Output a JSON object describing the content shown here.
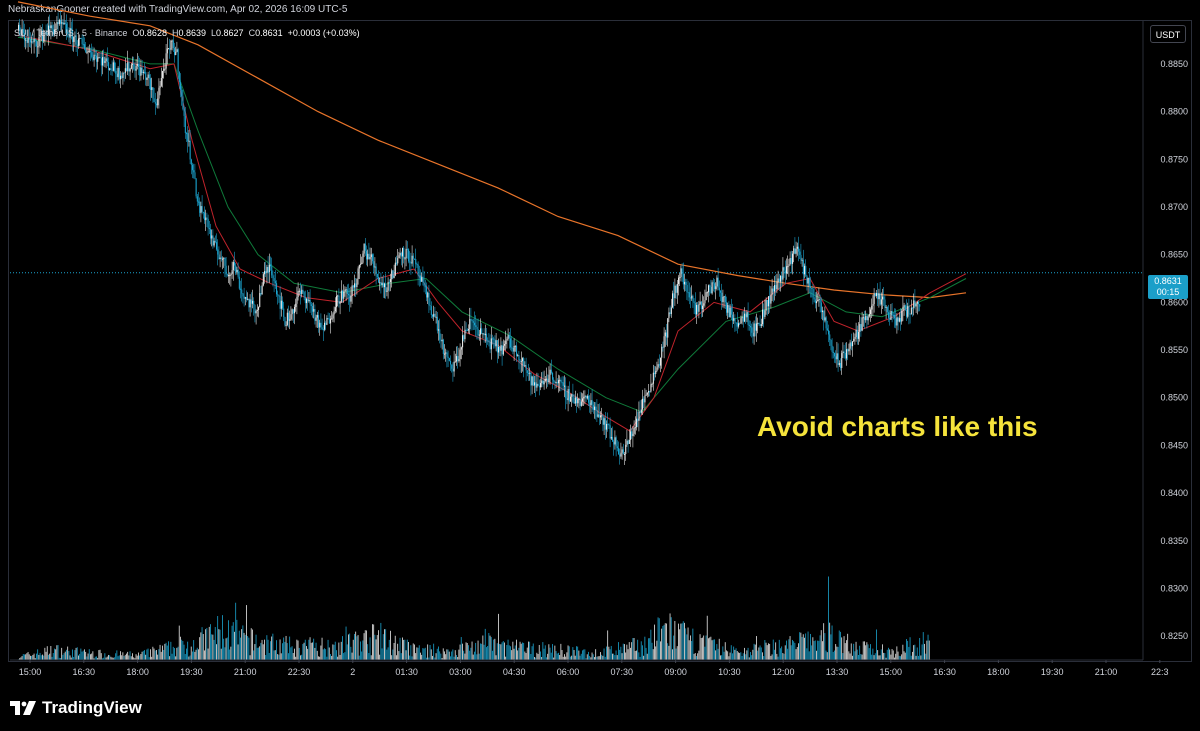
{
  "header": {
    "credit": "NebraskanGooner created with TradingView.com, Apr 02, 2026 16:09 UTC-5"
  },
  "legend": {
    "symbol": "SUI / TetherUS · 5 · Binance",
    "o_label": "O",
    "o_value": "0.8628",
    "h_label": "H",
    "h_value": "0.8639",
    "l_label": "L",
    "l_value": "0.8627",
    "c_label": "C",
    "c_value": "0.8631",
    "change": "+0.0003 (+0.03%)"
  },
  "currency": "USDT",
  "annotation": "Avoid charts like this",
  "price_tag": {
    "price": "0.8631",
    "countdown": "00:15"
  },
  "footer": {
    "brand": "TradingView"
  },
  "colors": {
    "up": "#e8e8e8",
    "down": "#1ba2cd",
    "ema_red": "#c0232b",
    "ema_green": "#0f7a3a",
    "ma_orange": "#e8742a",
    "annotation": "#f5e33b"
  },
  "chart_data": {
    "type": "candlestick",
    "x_ticks": [
      "15:00",
      "16:30",
      "18:00",
      "19:30",
      "21:00",
      "22:30",
      "2",
      "01:30",
      "03:00",
      "04:30",
      "06:00",
      "07:30",
      "09:00",
      "10:30",
      "12:00",
      "13:30",
      "15:00",
      "16:30",
      "18:00",
      "19:30",
      "21:00",
      "22:3"
    ],
    "y_ticks": [
      "0.8850",
      "0.8800",
      "0.8750",
      "0.8700",
      "0.8650",
      "0.8600",
      "0.8550",
      "0.8500",
      "0.8450",
      "0.8400",
      "0.8350",
      "0.8300",
      "0.8250"
    ],
    "ylim": [
      0.8225,
      0.8895
    ],
    "last_price": 0.8631,
    "price_path": [
      [
        0,
        0.8885
      ],
      [
        12,
        0.887
      ],
      [
        24,
        0.8885
      ],
      [
        36,
        0.889
      ],
      [
        48,
        0.8875
      ],
      [
        60,
        0.8862
      ],
      [
        72,
        0.8852
      ],
      [
        84,
        0.884
      ],
      [
        96,
        0.885
      ],
      [
        108,
        0.8835
      ],
      [
        114,
        0.8805
      ],
      [
        118,
        0.883
      ],
      [
        124,
        0.886
      ],
      [
        128,
        0.887
      ],
      [
        132,
        0.886
      ],
      [
        138,
        0.879
      ],
      [
        144,
        0.875
      ],
      [
        150,
        0.87
      ],
      [
        156,
        0.869
      ],
      [
        162,
        0.866
      ],
      [
        168,
        0.865
      ],
      [
        174,
        0.863
      ],
      [
        180,
        0.864
      ],
      [
        186,
        0.861
      ],
      [
        192,
        0.86
      ],
      [
        198,
        0.859
      ],
      [
        204,
        0.8625
      ],
      [
        210,
        0.864
      ],
      [
        216,
        0.861
      ],
      [
        222,
        0.858
      ],
      [
        228,
        0.859
      ],
      [
        234,
        0.861
      ],
      [
        240,
        0.8605
      ],
      [
        246,
        0.859
      ],
      [
        252,
        0.857
      ],
      [
        258,
        0.858
      ],
      [
        264,
        0.86
      ],
      [
        270,
        0.861
      ],
      [
        276,
        0.8605
      ],
      [
        282,
        0.8625
      ],
      [
        288,
        0.8655
      ],
      [
        294,
        0.8645
      ],
      [
        300,
        0.8625
      ],
      [
        306,
        0.8615
      ],
      [
        312,
        0.863
      ],
      [
        318,
        0.8655
      ],
      [
        324,
        0.865
      ],
      [
        330,
        0.864
      ],
      [
        336,
        0.862
      ],
      [
        342,
        0.86
      ],
      [
        348,
        0.858
      ],
      [
        354,
        0.855
      ],
      [
        360,
        0.853
      ],
      [
        366,
        0.854
      ],
      [
        372,
        0.857
      ],
      [
        378,
        0.858
      ],
      [
        384,
        0.857
      ],
      [
        390,
        0.856
      ],
      [
        396,
        0.8555
      ],
      [
        402,
        0.855
      ],
      [
        408,
        0.856
      ],
      [
        414,
        0.855
      ],
      [
        420,
        0.854
      ],
      [
        426,
        0.852
      ],
      [
        432,
        0.851
      ],
      [
        438,
        0.852
      ],
      [
        444,
        0.8525
      ],
      [
        450,
        0.8515
      ],
      [
        456,
        0.8505
      ],
      [
        462,
        0.85
      ],
      [
        468,
        0.8495
      ],
      [
        474,
        0.85
      ],
      [
        480,
        0.849
      ],
      [
        486,
        0.848
      ],
      [
        492,
        0.8465
      ],
      [
        498,
        0.845
      ],
      [
        504,
        0.844
      ],
      [
        510,
        0.846
      ],
      [
        516,
        0.848
      ],
      [
        522,
        0.85
      ],
      [
        528,
        0.852
      ],
      [
        534,
        0.854
      ],
      [
        540,
        0.857
      ],
      [
        546,
        0.861
      ],
      [
        552,
        0.863
      ],
      [
        558,
        0.861
      ],
      [
        564,
        0.859
      ],
      [
        570,
        0.86
      ],
      [
        576,
        0.8615
      ],
      [
        582,
        0.862
      ],
      [
        588,
        0.86
      ],
      [
        594,
        0.8585
      ],
      [
        600,
        0.858
      ],
      [
        606,
        0.859
      ],
      [
        612,
        0.857
      ],
      [
        618,
        0.858
      ],
      [
        624,
        0.86
      ],
      [
        630,
        0.8615
      ],
      [
        636,
        0.863
      ],
      [
        642,
        0.864
      ],
      [
        648,
        0.866
      ],
      [
        654,
        0.8635
      ],
      [
        660,
        0.8615
      ],
      [
        666,
        0.86
      ],
      [
        672,
        0.858
      ],
      [
        678,
        0.855
      ],
      [
        684,
        0.8535
      ],
      [
        690,
        0.855
      ],
      [
        696,
        0.856
      ],
      [
        702,
        0.8575
      ],
      [
        708,
        0.859
      ],
      [
        714,
        0.8605
      ],
      [
        720,
        0.86
      ],
      [
        726,
        0.8585
      ],
      [
        732,
        0.858
      ],
      [
        738,
        0.859
      ],
      [
        744,
        0.8595
      ],
      [
        750,
        0.86
      ],
      [
        756,
        0.8615
      ],
      [
        762,
        0.8625
      ],
      [
        768,
        0.8645
      ],
      [
        774,
        0.866
      ],
      [
        780,
        0.865
      ],
      [
        786,
        0.864
      ],
      [
        792,
        0.8631
      ]
    ],
    "ema_fast_path": [
      [
        0,
        0.888
      ],
      [
        60,
        0.8865
      ],
      [
        110,
        0.8845
      ],
      [
        130,
        0.885
      ],
      [
        145,
        0.877
      ],
      [
        165,
        0.868
      ],
      [
        185,
        0.8635
      ],
      [
        210,
        0.862
      ],
      [
        240,
        0.8605
      ],
      [
        270,
        0.86
      ],
      [
        300,
        0.8625
      ],
      [
        330,
        0.8635
      ],
      [
        350,
        0.86
      ],
      [
        370,
        0.857
      ],
      [
        400,
        0.8555
      ],
      [
        430,
        0.8525
      ],
      [
        460,
        0.8505
      ],
      [
        490,
        0.848
      ],
      [
        510,
        0.8465
      ],
      [
        530,
        0.85
      ],
      [
        550,
        0.857
      ],
      [
        580,
        0.86
      ],
      [
        610,
        0.859
      ],
      [
        640,
        0.862
      ],
      [
        660,
        0.8625
      ],
      [
        680,
        0.858
      ],
      [
        700,
        0.857
      ],
      [
        730,
        0.8585
      ],
      [
        760,
        0.861
      ],
      [
        790,
        0.863
      ]
    ],
    "ema_slow_path": [
      [
        0,
        0.8878
      ],
      [
        60,
        0.8866
      ],
      [
        110,
        0.885
      ],
      [
        130,
        0.885
      ],
      [
        150,
        0.878
      ],
      [
        175,
        0.87
      ],
      [
        200,
        0.865
      ],
      [
        230,
        0.862
      ],
      [
        270,
        0.861
      ],
      [
        310,
        0.862
      ],
      [
        340,
        0.8625
      ],
      [
        370,
        0.859
      ],
      [
        410,
        0.8565
      ],
      [
        450,
        0.853
      ],
      [
        490,
        0.85
      ],
      [
        520,
        0.8485
      ],
      [
        550,
        0.853
      ],
      [
        590,
        0.858
      ],
      [
        630,
        0.8595
      ],
      [
        660,
        0.861
      ],
      [
        690,
        0.859
      ],
      [
        720,
        0.8585
      ],
      [
        760,
        0.8605
      ],
      [
        790,
        0.8625
      ]
    ],
    "ma_long_path": [
      [
        0,
        0.8915
      ],
      [
        60,
        0.89
      ],
      [
        110,
        0.889
      ],
      [
        150,
        0.887
      ],
      [
        200,
        0.8835
      ],
      [
        250,
        0.88
      ],
      [
        300,
        0.877
      ],
      [
        350,
        0.8745
      ],
      [
        400,
        0.872
      ],
      [
        450,
        0.869
      ],
      [
        500,
        0.867
      ],
      [
        550,
        0.864
      ],
      [
        600,
        0.8628
      ],
      [
        640,
        0.862
      ],
      [
        680,
        0.8613
      ],
      [
        720,
        0.8608
      ],
      [
        760,
        0.8605
      ],
      [
        790,
        0.861
      ]
    ],
    "volume_profile": [
      [
        0,
        0.1
      ],
      [
        30,
        0.3
      ],
      [
        60,
        0.2
      ],
      [
        100,
        0.15
      ],
      [
        150,
        0.55
      ],
      [
        170,
        0.9
      ],
      [
        190,
        0.6
      ],
      [
        230,
        0.4
      ],
      [
        270,
        0.45
      ],
      [
        300,
        0.7
      ],
      [
        330,
        0.3
      ],
      [
        360,
        0.25
      ],
      [
        390,
        0.5
      ],
      [
        420,
        0.35
      ],
      [
        450,
        0.3
      ],
      [
        480,
        0.2
      ],
      [
        520,
        0.45
      ],
      [
        540,
        0.95
      ],
      [
        560,
        0.6
      ],
      [
        600,
        0.25
      ],
      [
        640,
        0.45
      ],
      [
        660,
        0.6
      ],
      [
        680,
        0.75
      ],
      [
        700,
        0.35
      ],
      [
        730,
        0.3
      ],
      [
        760,
        0.55
      ],
      [
        780,
        0.35
      ],
      [
        800,
        0.2
      ]
    ]
  }
}
